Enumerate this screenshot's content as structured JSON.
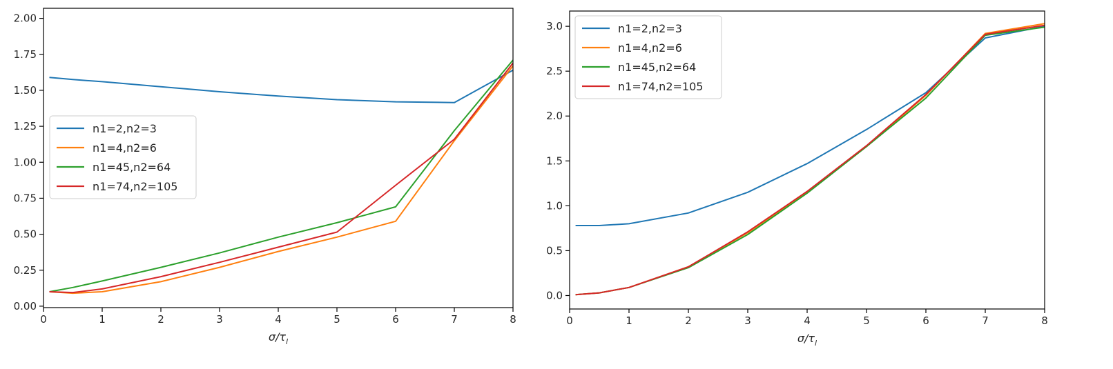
{
  "chart_data": [
    {
      "type": "line",
      "title": "",
      "xlabel": "σ/τ",
      "xlabel_subscript": "l",
      "ylabel": "",
      "xlim": [
        0,
        8
      ],
      "ylim": [
        -0.01,
        2.07
      ],
      "x_ticks": [
        0,
        1,
        2,
        3,
        4,
        5,
        6,
        7,
        8
      ],
      "x_tick_labels": [
        "0",
        "1",
        "2",
        "3",
        "4",
        "5",
        "6",
        "7",
        "8"
      ],
      "y_ticks": [
        0,
        0.25,
        0.5,
        0.75,
        1.0,
        1.25,
        1.5,
        1.75,
        2.0
      ],
      "y_tick_labels": [
        "0.00",
        "0.25",
        "0.50",
        "0.75",
        "1.00",
        "1.25",
        "1.50",
        "1.75",
        "2.00"
      ],
      "legend_position": "center-left",
      "series": [
        {
          "name": "n1=2,n2=3",
          "color": "#1f77b4",
          "x": [
            0.1,
            0.5,
            1,
            2,
            3,
            4,
            5,
            6,
            7,
            8
          ],
          "y": [
            1.59,
            1.575,
            1.56,
            1.525,
            1.49,
            1.46,
            1.435,
            1.42,
            1.415,
            1.64
          ]
        },
        {
          "name": "n1=4,n2=6",
          "color": "#ff7f0e",
          "x": [
            0.1,
            0.5,
            1,
            2,
            3,
            4,
            5,
            6,
            7,
            8
          ],
          "y": [
            0.1,
            0.09,
            0.1,
            0.17,
            0.27,
            0.38,
            0.48,
            0.59,
            1.15,
            1.67
          ]
        },
        {
          "name": "n1=45,n2=64",
          "color": "#2ca02c",
          "x": [
            0.1,
            0.5,
            1,
            2,
            3,
            4,
            5,
            6,
            7,
            8
          ],
          "y": [
            0.1,
            0.13,
            0.175,
            0.27,
            0.37,
            0.48,
            0.58,
            0.69,
            1.22,
            1.71
          ]
        },
        {
          "name": "n1=74,n2=105",
          "color": "#d62728",
          "x": [
            0.1,
            0.5,
            1,
            2,
            3,
            4,
            5,
            6,
            7,
            8
          ],
          "y": [
            0.1,
            0.095,
            0.12,
            0.205,
            0.305,
            0.41,
            0.515,
            0.84,
            1.16,
            1.69
          ]
        }
      ]
    },
    {
      "type": "line",
      "title": "",
      "xlabel": "σ/τ",
      "xlabel_subscript": "l",
      "ylabel": "",
      "xlim": [
        0,
        8
      ],
      "ylim": [
        -0.15,
        3.17
      ],
      "x_ticks": [
        0,
        1,
        2,
        3,
        4,
        5,
        6,
        7,
        8
      ],
      "x_tick_labels": [
        "0",
        "1",
        "2",
        "3",
        "4",
        "5",
        "6",
        "7",
        "8"
      ],
      "y_ticks": [
        0,
        0.5,
        1.0,
        1.5,
        2.0,
        2.5,
        3.0
      ],
      "y_tick_labels": [
        "0.0",
        "0.5",
        "1.0",
        "1.5",
        "2.0",
        "2.5",
        "3.0"
      ],
      "legend_position": "upper-left",
      "series": [
        {
          "name": "n1=2,n2=3",
          "color": "#1f77b4",
          "x": [
            0.1,
            0.5,
            1,
            2,
            3,
            4,
            5,
            6,
            7,
            8
          ],
          "y": [
            0.78,
            0.78,
            0.8,
            0.92,
            1.15,
            1.47,
            1.85,
            2.26,
            2.87,
            3.0
          ]
        },
        {
          "name": "n1=4,n2=6",
          "color": "#ff7f0e",
          "x": [
            0.1,
            0.5,
            1,
            2,
            3,
            4,
            5,
            6,
            7,
            8
          ],
          "y": [
            0.01,
            0.03,
            0.09,
            0.32,
            0.7,
            1.15,
            1.66,
            2.23,
            2.92,
            3.03
          ]
        },
        {
          "name": "n1=45,n2=64",
          "color": "#2ca02c",
          "x": [
            0.1,
            0.5,
            1,
            2,
            3,
            4,
            5,
            6,
            7,
            8
          ],
          "y": [
            0.01,
            0.03,
            0.09,
            0.31,
            0.68,
            1.14,
            1.66,
            2.2,
            2.9,
            2.99
          ]
        },
        {
          "name": "n1=74,n2=105",
          "color": "#d62728",
          "x": [
            0.1,
            0.5,
            1,
            2,
            3,
            4,
            5,
            6,
            7,
            8
          ],
          "y": [
            0.01,
            0.03,
            0.09,
            0.32,
            0.71,
            1.16,
            1.67,
            2.24,
            2.91,
            3.01
          ]
        }
      ]
    }
  ]
}
